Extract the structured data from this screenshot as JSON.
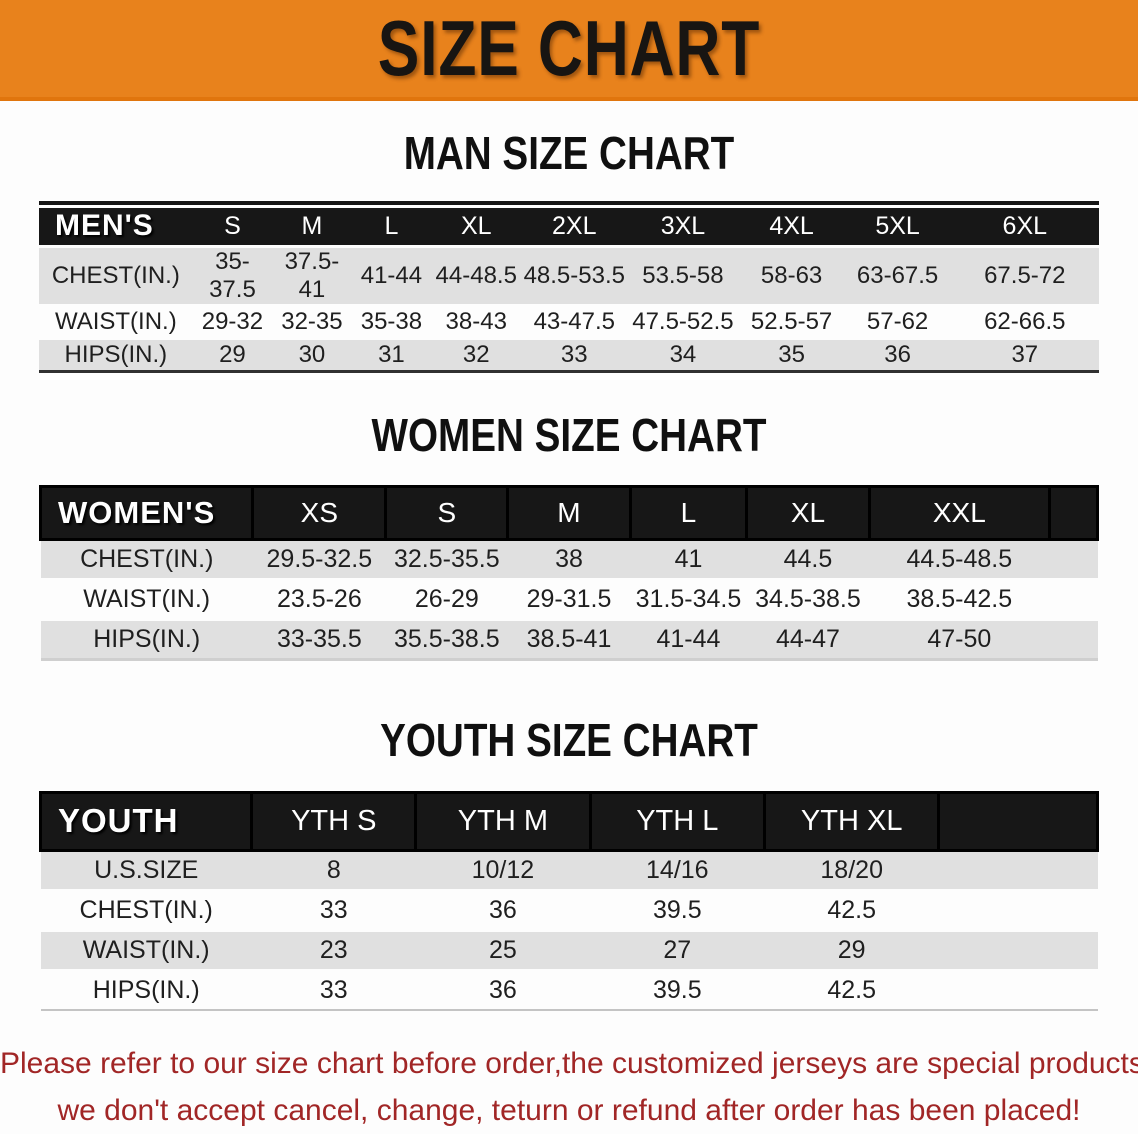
{
  "banner": {
    "title": "SIZE CHART",
    "bg_color": "#e8821c",
    "text_color": "#181512"
  },
  "sections": {
    "men": {
      "heading": "MAN SIZE CHART"
    },
    "women": {
      "heading": "WOMEN SIZE CHART"
    },
    "youth": {
      "heading": "YOUTH SIZE CHART"
    }
  },
  "tables": {
    "men": {
      "corner": "MEN'S",
      "sizes": [
        "S",
        "M",
        "L",
        "XL",
        "2XL",
        "3XL",
        "4XL",
        "5XL",
        "6XL"
      ],
      "rows": [
        {
          "label": "CHEST(IN.)",
          "values": [
            "35-37.5",
            "37.5-41",
            "41-44",
            "44-48.5",
            "48.5-53.5",
            "53.5-58",
            "58-63",
            "63-67.5",
            "67.5-72"
          ]
        },
        {
          "label": "WAIST(IN.)",
          "values": [
            "29-32",
            "32-35",
            "35-38",
            "38-43",
            "43-47.5",
            "47.5-52.5",
            "52.5-57",
            "57-62",
            "62-66.5"
          ]
        },
        {
          "label": "HIPS(IN.)",
          "values": [
            "29",
            "30",
            "31",
            "32",
            "33",
            "34",
            "35",
            "36",
            "37"
          ]
        }
      ]
    },
    "women": {
      "corner": "WOMEN'S",
      "sizes": [
        "XS",
        "S",
        "M",
        "L",
        "XL",
        "XXL"
      ],
      "rows": [
        {
          "label": "CHEST(IN.)",
          "values": [
            "29.5-32.5",
            "32.5-35.5",
            "38",
            "41",
            "44.5",
            "44.5-48.5"
          ]
        },
        {
          "label": "WAIST(IN.)",
          "values": [
            "23.5-26",
            "26-29",
            "29-31.5",
            "31.5-34.5",
            "34.5-38.5",
            "38.5-42.5"
          ]
        },
        {
          "label": "HIPS(IN.)",
          "values": [
            "33-35.5",
            "35.5-38.5",
            "38.5-41",
            "41-44",
            "44-47",
            "47-50"
          ]
        }
      ]
    },
    "youth": {
      "corner": "YOUTH",
      "sizes": [
        "YTH S",
        "YTH M",
        "YTH L",
        "YTH XL"
      ],
      "rows": [
        {
          "label": "U.S.SIZE",
          "values": [
            "8",
            "10/12",
            "14/16",
            "18/20"
          ]
        },
        {
          "label": "CHEST(IN.)",
          "values": [
            "33",
            "36",
            "39.5",
            "42.5"
          ]
        },
        {
          "label": "WAIST(IN.)",
          "values": [
            "23",
            "25",
            "27",
            "29"
          ]
        },
        {
          "label": "HIPS(IN.)",
          "values": [
            "33",
            "36",
            "39.5",
            "42.5"
          ]
        }
      ]
    }
  },
  "footer": {
    "line1": "Please refer to our size chart before order,the customized jerseys are special products,",
    "line2": "we don't accept cancel, change, teturn or refund after order has been placed!",
    "text_color": "#a12626"
  },
  "colors": {
    "banner_orange": "#e8821c",
    "header_bar_black": "#171717",
    "row_shade_gray": "#e0e0e0",
    "footer_red": "#a12626"
  }
}
